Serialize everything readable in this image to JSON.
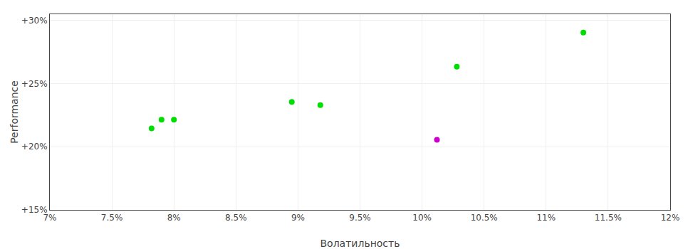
{
  "chart_data": {
    "type": "scatter",
    "xlabel": "Волатильность",
    "ylabel": "Performance",
    "xlim": [
      0.07,
      0.12
    ],
    "ylim": [
      0.15,
      0.305
    ],
    "xticks": [
      {
        "value": 0.07,
        "label": "7%"
      },
      {
        "value": 0.075,
        "label": "7.5%"
      },
      {
        "value": 0.08,
        "label": "8%"
      },
      {
        "value": 0.085,
        "label": "8.5%"
      },
      {
        "value": 0.09,
        "label": "9%"
      },
      {
        "value": 0.095,
        "label": "9.5%"
      },
      {
        "value": 0.1,
        "label": "10%"
      },
      {
        "value": 0.105,
        "label": "10.5%"
      },
      {
        "value": 0.11,
        "label": "11%"
      },
      {
        "value": 0.115,
        "label": "11.5%"
      },
      {
        "value": 0.12,
        "label": "12%"
      }
    ],
    "yticks": [
      {
        "value": 0.15,
        "label": "+15%"
      },
      {
        "value": 0.2,
        "label": "+20%"
      },
      {
        "value": 0.25,
        "label": "+25%"
      },
      {
        "value": 0.3,
        "label": "+30%"
      }
    ],
    "grid": true,
    "marker": "circle",
    "series": [
      {
        "color": "#00dd00",
        "x": [
          0.079,
          0.08,
          0.0782,
          0.0895,
          0.0918,
          0.1028,
          0.113
        ],
        "values": [
          0.2215,
          0.2215,
          0.2145,
          0.2355,
          0.233,
          0.2635,
          0.2905
        ]
      },
      {
        "color": "#cc00cc",
        "x": [
          0.1012
        ],
        "values": [
          0.2055
        ]
      }
    ]
  }
}
